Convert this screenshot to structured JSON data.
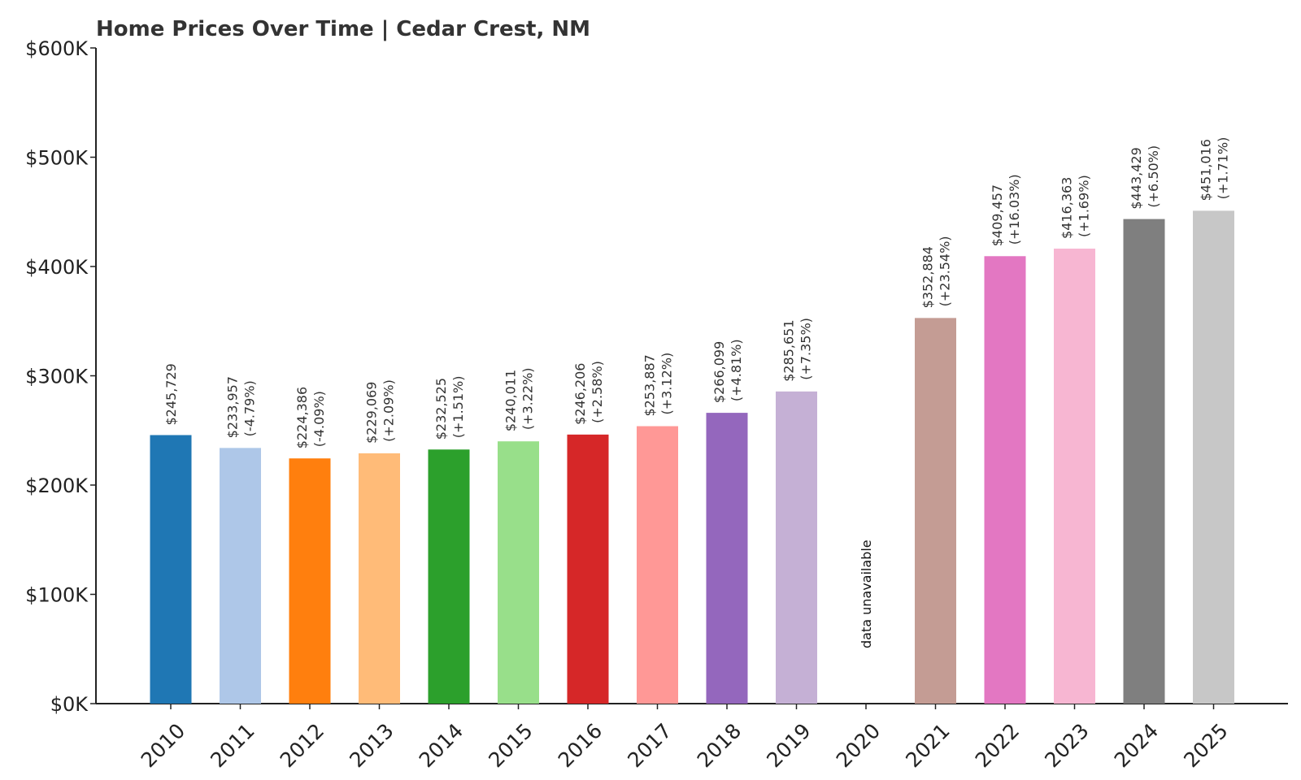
{
  "chart_data": {
    "type": "bar",
    "title": "Home Prices Over Time | Cedar Crest, NM",
    "xlabel": "",
    "ylabel": "",
    "ylim": [
      0,
      600000
    ],
    "yticks": [
      0,
      100000,
      200000,
      300000,
      400000,
      500000,
      600000
    ],
    "ytick_labels": [
      "$0K",
      "$100K",
      "$200K",
      "$300K",
      "$400K",
      "$500K",
      "$600K"
    ],
    "grid": false,
    "legend": "none",
    "categories": [
      "2010",
      "2011",
      "2012",
      "2013",
      "2014",
      "2015",
      "2016",
      "2017",
      "2018",
      "2019",
      "2020",
      "2021",
      "2022",
      "2023",
      "2024",
      "2025"
    ],
    "values": [
      245729,
      233957,
      224386,
      229069,
      232525,
      240011,
      246206,
      253887,
      266099,
      285651,
      null,
      352884,
      409457,
      416363,
      443429,
      451016
    ],
    "price_labels": [
      "$245,729",
      "$233,957",
      "$224,386",
      "$229,069",
      "$232,525",
      "$240,011",
      "$246,206",
      "$253,887",
      "$266,099",
      "$285,651",
      "",
      "$352,884",
      "$409,457",
      "$416,363",
      "$443,429",
      "$451,016"
    ],
    "change_labels": [
      "",
      "(-4.79%)",
      "(-4.09%)",
      "(+2.09%)",
      "(+1.51%)",
      "(+3.22%)",
      "(+2.58%)",
      "(+3.12%)",
      "(+4.81%)",
      "(+7.35%)",
      "",
      "(+23.54%)",
      "(+16.03%)",
      "(+1.69%)",
      "(+6.50%)",
      "(+1.71%)"
    ],
    "missing_label": "data unavailable",
    "colors": [
      "#1f77b4",
      "#aec7e8",
      "#ff7f0e",
      "#ffbb78",
      "#2ca02c",
      "#98df8a",
      "#d62728",
      "#ff9896",
      "#9467bd",
      "#c5b0d5",
      "#8c564b",
      "#c49c94",
      "#e377c2",
      "#f7b6d2",
      "#7f7f7f",
      "#c7c7c7"
    ]
  }
}
